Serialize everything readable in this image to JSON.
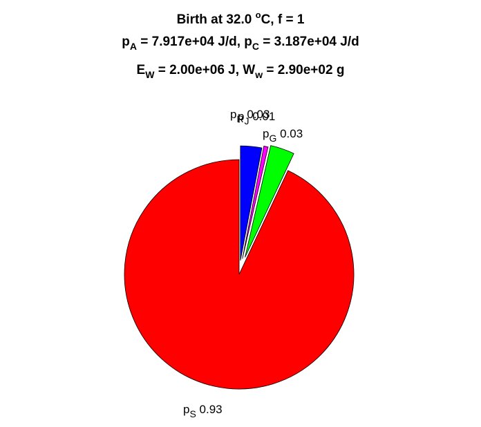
{
  "title": {
    "line1": {
      "a": "Birth at 32.0 ",
      "sup": "o",
      "b": "C, f = 1"
    },
    "line2": {
      "a": "p",
      "sub1": "A",
      "b": " = 7.917e+04 J/d, p",
      "sub2": "C",
      "c": " = 3.187e+04 J/d"
    },
    "line3": {
      "a": "E",
      "sub1": "W",
      "b": " = 2.00e+06 J, W",
      "sub2": "w",
      "c": " = 2.90e+02 g"
    }
  },
  "chart_data": {
    "type": "pie",
    "start_angle_deg": 90,
    "direction": "clockwise",
    "slices": [
      {
        "name": "p_R",
        "symbol": "p",
        "subscript": "R",
        "label": "0.03",
        "value": 0.03,
        "color": "#0000ff",
        "exploded": true
      },
      {
        "name": "p_J",
        "symbol": "p",
        "subscript": "J",
        "label": "0.01",
        "value": 0.006,
        "color": "#ff00ff",
        "exploded": true
      },
      {
        "name": "p_G",
        "symbol": "p",
        "subscript": "G",
        "label": "0.03",
        "value": 0.034,
        "color": "#00ff00",
        "exploded": true
      },
      {
        "name": "p_S",
        "symbol": "p",
        "subscript": "S",
        "label": "0.93",
        "value": 0.93,
        "color": "#ff0000",
        "exploded": false
      }
    ]
  }
}
